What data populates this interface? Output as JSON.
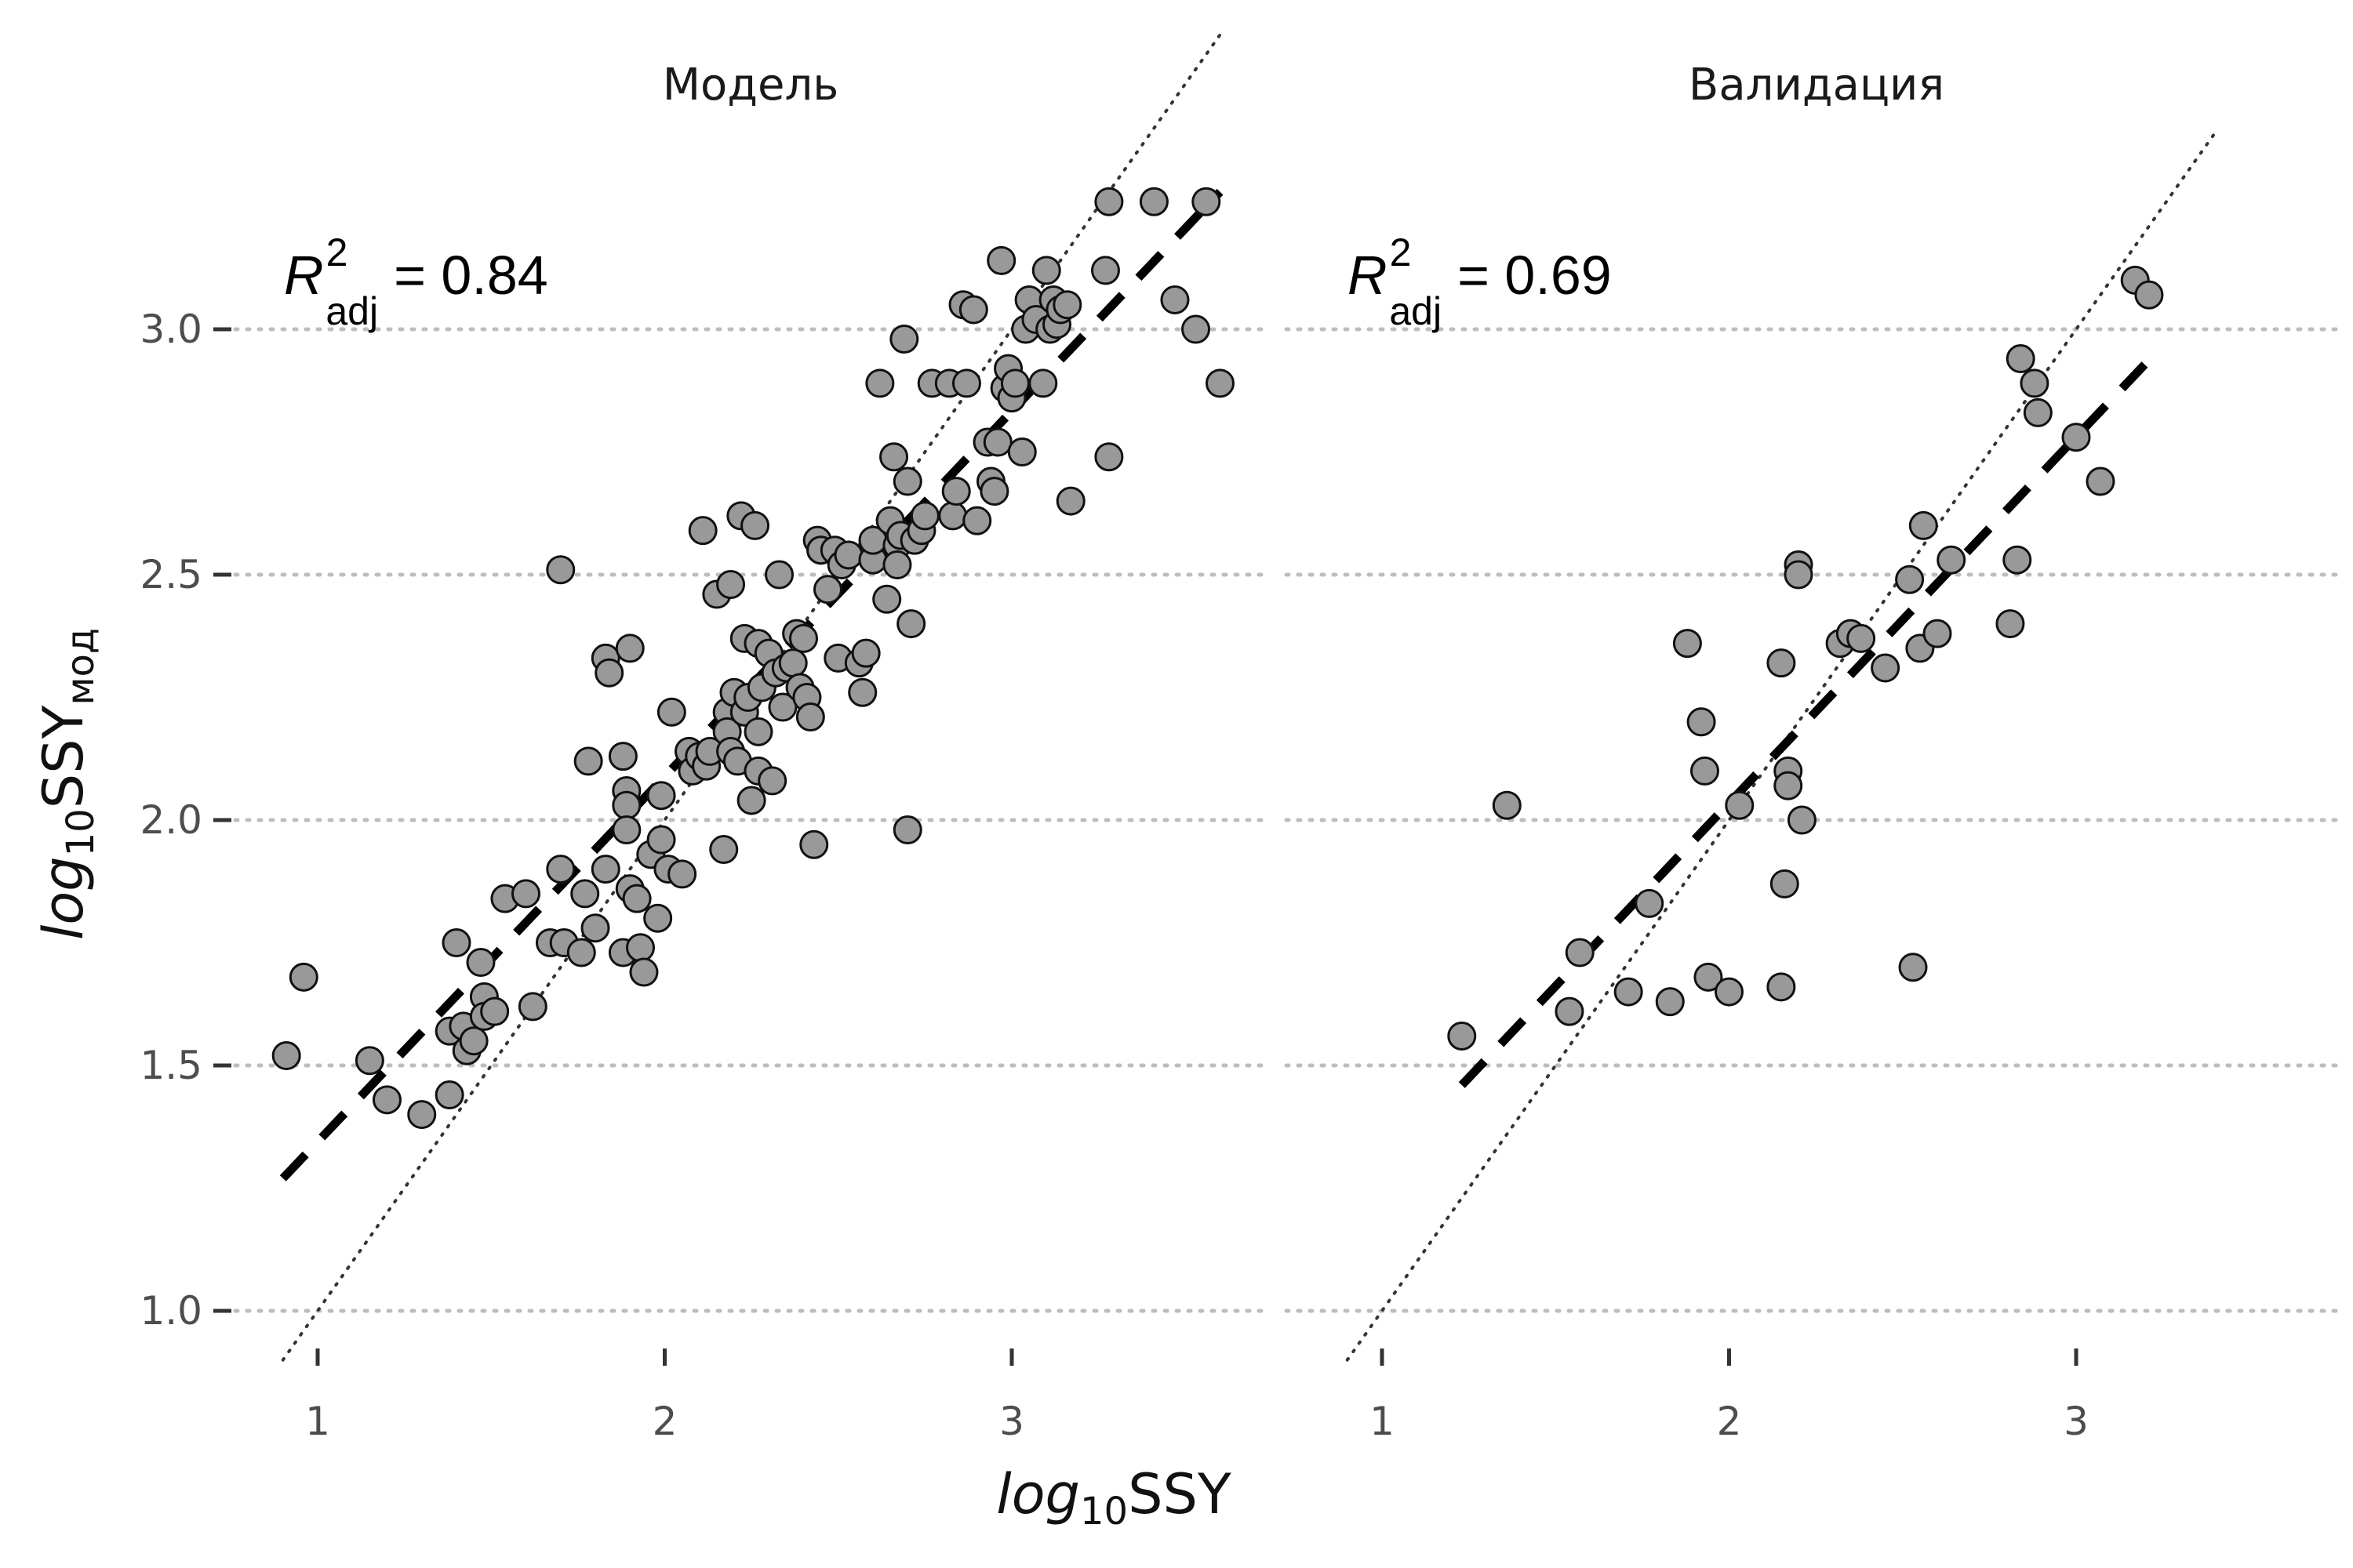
{
  "axis_titles": {
    "x_base": "log",
    "x_sub": "10",
    "x_tail": "SSY",
    "y_base": "log",
    "y_sub": "10",
    "y_tail": "SSY",
    "y_tail_sub": "мод"
  },
  "r2_symbol": "R",
  "r2_sup": "2",
  "r2_sub": "adj",
  "chart_data": [
    {
      "type": "scatter",
      "title": "Модель",
      "annotation": "= 0.84",
      "xlim": [
        0.75,
        3.75
      ],
      "ylim": [
        0.9,
        3.35
      ],
      "xticks": [
        "1",
        "2",
        "3"
      ],
      "yticks": [
        "1.0",
        "1.5",
        "2.0",
        "2.5",
        "3.0"
      ],
      "grid": "horizontal dotted at y ticks",
      "reference_line": {
        "style": "dotted",
        "x": [
          0.9,
          3.6
        ],
        "y": [
          0.9,
          3.6
        ]
      },
      "fit_line": {
        "style": "dashed",
        "x": [
          0.9,
          3.6
        ],
        "y": [
          1.27,
          3.28
        ]
      },
      "points": [
        [
          0.91,
          1.52
        ],
        [
          0.96,
          1.68
        ],
        [
          1.15,
          1.51
        ],
        [
          1.2,
          1.43
        ],
        [
          1.3,
          1.4
        ],
        [
          1.38,
          1.44
        ],
        [
          1.4,
          1.75
        ],
        [
          1.38,
          1.57
        ],
        [
          1.42,
          1.58
        ],
        [
          1.43,
          1.53
        ],
        [
          1.45,
          1.55
        ],
        [
          1.47,
          1.71
        ],
        [
          1.48,
          1.64
        ],
        [
          1.48,
          1.6
        ],
        [
          1.51,
          1.61
        ],
        [
          1.54,
          1.84
        ],
        [
          1.6,
          1.85
        ],
        [
          1.62,
          1.62
        ],
        [
          1.67,
          1.75
        ],
        [
          1.7,
          1.9
        ],
        [
          1.71,
          1.75
        ],
        [
          1.7,
          2.51
        ],
        [
          1.76,
          1.73
        ],
        [
          1.77,
          1.85
        ],
        [
          1.78,
          2.12
        ],
        [
          1.8,
          1.78
        ],
        [
          1.83,
          1.9
        ],
        [
          1.83,
          2.33
        ],
        [
          1.84,
          2.3
        ],
        [
          1.88,
          2.13
        ],
        [
          1.88,
          1.73
        ],
        [
          1.89,
          2.06
        ],
        [
          1.89,
          2.03
        ],
        [
          1.89,
          1.98
        ],
        [
          1.9,
          2.35
        ],
        [
          1.9,
          1.86
        ],
        [
          1.92,
          1.84
        ],
        [
          1.93,
          1.74
        ],
        [
          1.94,
          1.69
        ],
        [
          1.96,
          1.93
        ],
        [
          1.98,
          1.8
        ],
        [
          1.99,
          1.96
        ],
        [
          1.99,
          2.05
        ],
        [
          2.01,
          1.9
        ],
        [
          2.02,
          2.22
        ],
        [
          2.05,
          1.89
        ],
        [
          2.07,
          2.14
        ],
        [
          2.08,
          2.1
        ],
        [
          2.1,
          2.13
        ],
        [
          2.11,
          2.59
        ],
        [
          2.12,
          2.11
        ],
        [
          2.13,
          2.14
        ],
        [
          2.15,
          2.46
        ],
        [
          2.17,
          1.94
        ],
        [
          2.18,
          2.22
        ],
        [
          2.18,
          2.18
        ],
        [
          2.19,
          2.48
        ],
        [
          2.19,
          2.14
        ],
        [
          2.2,
          2.26
        ],
        [
          2.21,
          2.12
        ],
        [
          2.22,
          2.62
        ],
        [
          2.23,
          2.37
        ],
        [
          2.23,
          2.22
        ],
        [
          2.24,
          2.25
        ],
        [
          2.25,
          2.04
        ],
        [
          2.26,
          2.6
        ],
        [
          2.27,
          2.36
        ],
        [
          2.27,
          2.18
        ],
        [
          2.27,
          2.1
        ],
        [
          2.28,
          2.27
        ],
        [
          2.3,
          2.34
        ],
        [
          2.31,
          2.08
        ],
        [
          2.32,
          2.3
        ],
        [
          2.33,
          2.5
        ],
        [
          2.34,
          2.23
        ],
        [
          2.35,
          2.31
        ],
        [
          2.37,
          2.32
        ],
        [
          2.38,
          2.38
        ],
        [
          2.39,
          2.27
        ],
        [
          2.4,
          2.37
        ],
        [
          2.41,
          2.25
        ],
        [
          2.42,
          2.21
        ],
        [
          2.43,
          1.95
        ],
        [
          2.44,
          2.57
        ],
        [
          2.45,
          2.55
        ],
        [
          2.45,
          2.55
        ],
        [
          2.47,
          2.47
        ],
        [
          2.49,
          2.55
        ],
        [
          2.5,
          2.33
        ],
        [
          2.51,
          2.52
        ],
        [
          2.53,
          2.54
        ],
        [
          2.56,
          2.32
        ],
        [
          2.57,
          2.26
        ],
        [
          2.58,
          2.34
        ],
        [
          2.6,
          2.53
        ],
        [
          2.6,
          2.57
        ],
        [
          2.62,
          2.89
        ],
        [
          2.64,
          2.45
        ],
        [
          2.65,
          2.61
        ],
        [
          2.66,
          2.74
        ],
        [
          2.67,
          2.56
        ],
        [
          2.67,
          2.52
        ],
        [
          2.68,
          2.58
        ],
        [
          2.69,
          2.98
        ],
        [
          2.7,
          1.98
        ],
        [
          2.7,
          2.69
        ],
        [
          2.71,
          2.4
        ],
        [
          2.72,
          2.57
        ],
        [
          2.74,
          2.59
        ],
        [
          2.75,
          2.62
        ],
        [
          2.77,
          2.89
        ],
        [
          2.82,
          2.89
        ],
        [
          2.83,
          2.62
        ],
        [
          2.84,
          2.67
        ],
        [
          2.86,
          3.05
        ],
        [
          2.87,
          2.89
        ],
        [
          2.89,
          3.04
        ],
        [
          2.9,
          2.61
        ],
        [
          2.93,
          2.77
        ],
        [
          2.94,
          2.69
        ],
        [
          2.95,
          2.67
        ],
        [
          2.96,
          2.77
        ],
        [
          2.97,
          3.14
        ],
        [
          2.98,
          2.88
        ],
        [
          2.99,
          2.92
        ],
        [
          3.0,
          2.86
        ],
        [
          3.01,
          2.89
        ],
        [
          3.03,
          2.75
        ],
        [
          3.04,
          3.0
        ],
        [
          3.05,
          3.06
        ],
        [
          3.07,
          3.02
        ],
        [
          3.09,
          2.89
        ],
        [
          3.1,
          3.12
        ],
        [
          3.11,
          3.0
        ],
        [
          3.12,
          3.06
        ],
        [
          3.13,
          3.01
        ],
        [
          3.14,
          3.04
        ],
        [
          3.16,
          3.05
        ],
        [
          3.17,
          2.65
        ],
        [
          3.27,
          3.12
        ],
        [
          3.28,
          2.74
        ],
        [
          3.28,
          3.26
        ],
        [
          3.41,
          3.26
        ],
        [
          3.47,
          3.06
        ],
        [
          3.53,
          3.0
        ],
        [
          3.56,
          3.26
        ],
        [
          3.6,
          2.89
        ]
      ]
    },
    {
      "type": "scatter",
      "title": "Валидация",
      "annotation": "= 0.69",
      "xlim": [
        0.75,
        3.75
      ],
      "ylim": [
        0.9,
        3.35
      ],
      "xticks": [
        "1",
        "2",
        "3"
      ],
      "yticks": [
        "1.0",
        "1.5",
        "2.0",
        "2.5",
        "3.0"
      ],
      "grid": "horizontal dotted at y ticks",
      "reference_line": {
        "style": "dotted",
        "x": [
          0.9,
          3.4
        ],
        "y": [
          0.9,
          3.4
        ]
      },
      "fit_line": {
        "style": "dashed",
        "x": [
          1.23,
          3.2
        ],
        "y": [
          1.46,
          2.93
        ]
      },
      "points": [
        [
          1.23,
          1.56
        ],
        [
          1.36,
          2.03
        ],
        [
          1.54,
          1.61
        ],
        [
          1.57,
          1.73
        ],
        [
          1.71,
          1.65
        ],
        [
          1.77,
          1.83
        ],
        [
          1.83,
          1.63
        ],
        [
          1.88,
          2.36
        ],
        [
          1.92,
          2.2
        ],
        [
          1.93,
          2.1
        ],
        [
          1.94,
          1.68
        ],
        [
          2.0,
          1.65
        ],
        [
          2.03,
          2.03
        ],
        [
          2.15,
          1.66
        ],
        [
          2.15,
          2.32
        ],
        [
          2.16,
          1.87
        ],
        [
          2.17,
          2.1
        ],
        [
          2.17,
          2.07
        ],
        [
          2.2,
          2.52
        ],
        [
          2.2,
          2.5
        ],
        [
          2.21,
          2.0
        ],
        [
          2.32,
          2.36
        ],
        [
          2.35,
          2.38
        ],
        [
          2.38,
          2.37
        ],
        [
          2.45,
          2.31
        ],
        [
          2.52,
          2.49
        ],
        [
          2.53,
          1.7
        ],
        [
          2.55,
          2.35
        ],
        [
          2.56,
          2.6
        ],
        [
          2.6,
          2.38
        ],
        [
          2.64,
          2.53
        ],
        [
          2.81,
          2.4
        ],
        [
          2.83,
          2.53
        ],
        [
          2.84,
          2.94
        ],
        [
          2.88,
          2.89
        ],
        [
          2.89,
          2.83
        ],
        [
          3.0,
          2.78
        ],
        [
          3.07,
          2.69
        ],
        [
          3.17,
          3.1
        ],
        [
          3.21,
          3.07
        ]
      ]
    }
  ]
}
